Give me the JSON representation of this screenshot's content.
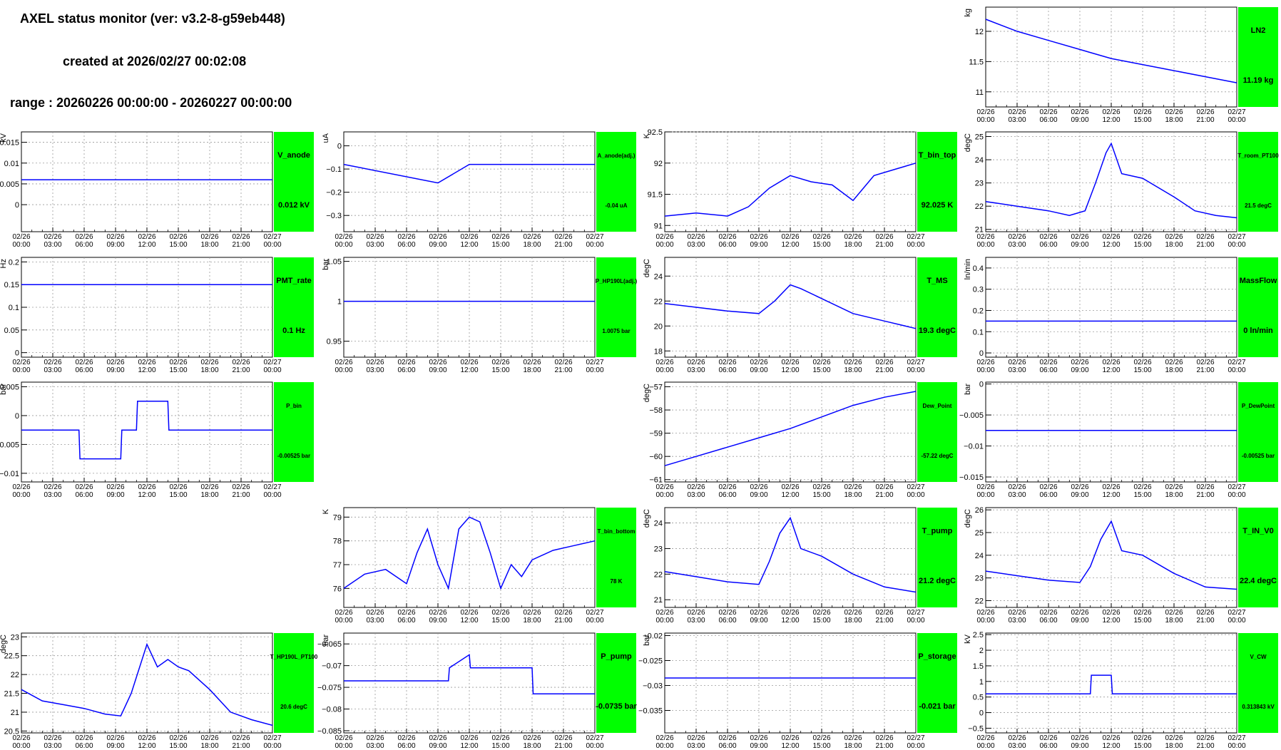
{
  "header": {
    "title": "AXEL status monitor (ver: v3.2-8-g59eb448)",
    "created": "created at 2026/02/27 00:02:08",
    "range": "range : 20260226 00:00:00 - 20260227 00:00:00"
  },
  "colors": {
    "trace": "#0000ff",
    "status_box": "#00ff00",
    "grid": "#9a9a9a"
  },
  "x_axis": {
    "ticks_top": [
      "02/26",
      "02/26",
      "02/26",
      "02/26",
      "02/26",
      "02/26",
      "02/26",
      "02/26",
      "02/27"
    ],
    "ticks_bottom": [
      "00:00",
      "03:00",
      "06:00",
      "09:00",
      "12:00",
      "15:00",
      "18:00",
      "21:00",
      "00:00"
    ]
  },
  "chart_data": [
    {
      "id": "LN2",
      "type": "line",
      "col": 3,
      "row": 0,
      "ylabel": "kg",
      "ylim": [
        10.75,
        12.4
      ],
      "yticks": [
        "11",
        "11.5",
        "12"
      ],
      "ytick_vals": [
        11,
        11.5,
        12
      ],
      "status_label": "LN2",
      "status_value": "11.19 kg",
      "small": false,
      "series": [
        {
          "x": [
            0,
            3,
            6,
            9,
            12,
            15,
            18,
            21,
            24
          ],
          "y": [
            12.2,
            12.0,
            11.85,
            11.7,
            11.55,
            11.45,
            11.35,
            11.25,
            11.15
          ]
        }
      ]
    },
    {
      "id": "V_anode",
      "type": "line",
      "col": 0,
      "row": 1,
      "ylabel": "kV",
      "ylim": [
        -0.0065,
        0.0175
      ],
      "yticks": [
        "0",
        "0.005",
        "0.01",
        "0.015"
      ],
      "ytick_vals": [
        0,
        0.005,
        0.01,
        0.015
      ],
      "status_label": "V_anode",
      "status_value": "0.012 kV",
      "small": false,
      "series": [
        {
          "x": [
            0,
            12,
            24
          ],
          "y": [
            0.006,
            0.006,
            0.006
          ]
        }
      ]
    },
    {
      "id": "A_anode",
      "type": "line",
      "col": 1,
      "row": 1,
      "ylabel": "uA",
      "ylim": [
        -0.37,
        0.06
      ],
      "yticks": [
        "0",
        "−0.1",
        "−0.2",
        "−0.3"
      ],
      "ytick_vals": [
        0,
        -0.1,
        -0.2,
        -0.3
      ],
      "status_label": "A_anode(adj.)",
      "status_value": "-0.04 uA",
      "small": true,
      "series": [
        {
          "x": [
            0,
            9,
            12,
            24
          ],
          "y": [
            -0.08,
            -0.16,
            -0.08,
            -0.08
          ]
        }
      ]
    },
    {
      "id": "T_bin_top",
      "type": "line",
      "col": 2,
      "row": 1,
      "ylabel": "K",
      "ylim": [
        90.9,
        92.5
      ],
      "yticks": [
        "91",
        "91.5",
        "92",
        "92.5"
      ],
      "ytick_vals": [
        91,
        91.5,
        92,
        92.5
      ],
      "status_label": "T_bin_top",
      "status_value": "92.025 K",
      "small": false,
      "series": [
        {
          "x": [
            0,
            3,
            6,
            8,
            10,
            12,
            14,
            16,
            18,
            20,
            22,
            24
          ],
          "y": [
            91.15,
            91.2,
            91.15,
            91.3,
            91.6,
            91.8,
            91.7,
            91.65,
            91.4,
            91.8,
            91.9,
            92.0
          ]
        }
      ]
    },
    {
      "id": "T_room_PT100",
      "type": "line",
      "col": 3,
      "row": 1,
      "ylabel": "degC",
      "ylim": [
        20.9,
        25.2
      ],
      "yticks": [
        "21",
        "22",
        "23",
        "24",
        "25"
      ],
      "ytick_vals": [
        21,
        22,
        23,
        24,
        25
      ],
      "status_label": "T_room_PT100",
      "status_value": "21.5 degC",
      "small": true,
      "series": [
        {
          "x": [
            0,
            3,
            6,
            8,
            9.5,
            10.5,
            11.5,
            12,
            13,
            15,
            18,
            20,
            22,
            24
          ],
          "y": [
            22.2,
            22.0,
            21.8,
            21.6,
            21.8,
            23.0,
            24.3,
            24.7,
            23.4,
            23.2,
            22.4,
            21.8,
            21.6,
            21.5
          ]
        }
      ]
    },
    {
      "id": "PMT_rate",
      "type": "line",
      "col": 0,
      "row": 2,
      "ylabel": "Hz",
      "ylim": [
        -0.01,
        0.21
      ],
      "yticks": [
        "0",
        "0.05",
        "0.1",
        "0.15",
        "0.2"
      ],
      "ytick_vals": [
        0,
        0.05,
        0.1,
        0.15,
        0.2
      ],
      "status_label": "PMT_rate",
      "status_value": "0.1 Hz",
      "small": false,
      "series": [
        {
          "x": [
            0,
            24
          ],
          "y": [
            0.15,
            0.15
          ]
        }
      ]
    },
    {
      "id": "P_HP190L",
      "type": "line",
      "col": 1,
      "row": 2,
      "ylabel": "bar",
      "ylim": [
        0.93,
        1.055
      ],
      "yticks": [
        "0.95",
        "1",
        "1.05"
      ],
      "ytick_vals": [
        0.95,
        1,
        1.05
      ],
      "status_label": "P_HP190L(adj.)",
      "status_value": "1.0075 bar",
      "small": true,
      "series": [
        {
          "x": [
            0,
            24
          ],
          "y": [
            1.0,
            1.0
          ]
        }
      ]
    },
    {
      "id": "T_MS",
      "type": "line",
      "col": 2,
      "row": 2,
      "ylabel": "degC",
      "ylim": [
        17.5,
        25.5
      ],
      "yticks": [
        "18",
        "20",
        "22",
        "24"
      ],
      "ytick_vals": [
        18,
        20,
        22,
        24
      ],
      "status_label": "T_MS",
      "status_value": "19.3 degC",
      "small": false,
      "series": [
        {
          "x": [
            0,
            3,
            6,
            9,
            10.5,
            12,
            13,
            15,
            18,
            21,
            24
          ],
          "y": [
            21.8,
            21.5,
            21.2,
            21.0,
            22.0,
            23.3,
            23.0,
            22.2,
            21.0,
            20.4,
            19.8
          ]
        }
      ]
    },
    {
      "id": "MassFlow",
      "type": "line",
      "col": 3,
      "row": 2,
      "ylabel": "ln/min",
      "ylim": [
        -0.02,
        0.45
      ],
      "yticks": [
        "0",
        "0.1",
        "0.2",
        "0.3",
        "0.4"
      ],
      "ytick_vals": [
        0,
        0.1,
        0.2,
        0.3,
        0.4
      ],
      "status_label": "MassFlow",
      "status_value": "0 ln/min",
      "small": false,
      "series": [
        {
          "x": [
            0,
            24
          ],
          "y": [
            0.15,
            0.15
          ]
        }
      ]
    },
    {
      "id": "P_bin",
      "type": "line",
      "col": 0,
      "row": 3,
      "ylabel": "bar",
      "ylim": [
        -0.0115,
        0.0058
      ],
      "yticks": [
        "−0.01",
        "−0.005",
        "0",
        "0.005"
      ],
      "ytick_vals": [
        -0.01,
        -0.005,
        0,
        0.005
      ],
      "status_label": "P_bin",
      "status_value": "-0.00525 bar",
      "small": true,
      "series": [
        {
          "x": [
            0,
            5.5,
            5.6,
            9.5,
            9.6,
            11,
            11.1,
            14,
            14.1,
            24
          ],
          "y": [
            -0.0025,
            -0.0025,
            -0.0075,
            -0.0075,
            -0.0025,
            -0.0025,
            0.0025,
            0.0025,
            -0.0025,
            -0.0025
          ]
        }
      ]
    },
    {
      "id": "Dew_Point",
      "type": "line",
      "col": 2,
      "row": 3,
      "ylabel": "degC",
      "ylim": [
        -61.1,
        -56.8
      ],
      "yticks": [
        "−61",
        "−60",
        "−59",
        "−58",
        "−57"
      ],
      "ytick_vals": [
        -61,
        -60,
        -59,
        -58,
        -57
      ],
      "status_label": "Dew_Point",
      "status_value": "-57.22 degC",
      "small": true,
      "series": [
        {
          "x": [
            0,
            3,
            6,
            9,
            12,
            15,
            18,
            21,
            24
          ],
          "y": [
            -60.4,
            -60.0,
            -59.6,
            -59.2,
            -58.8,
            -58.3,
            -57.8,
            -57.45,
            -57.2
          ]
        }
      ]
    },
    {
      "id": "P_DewPoint",
      "type": "line",
      "col": 3,
      "row": 3,
      "ylabel": "bar",
      "ylim": [
        -0.0158,
        0.0003
      ],
      "yticks": [
        "−0.015",
        "−0.01",
        "−0.005",
        "0"
      ],
      "ytick_vals": [
        -0.015,
        -0.01,
        -0.005,
        0
      ],
      "status_label": "P_DewPoint",
      "status_value": "-0.00525 bar",
      "small": true,
      "series": [
        {
          "x": [
            0,
            24
          ],
          "y": [
            -0.0075,
            -0.0075
          ]
        }
      ]
    },
    {
      "id": "T_bin_bottom",
      "type": "line",
      "col": 1,
      "row": 4,
      "ylabel": "K",
      "ylim": [
        75.2,
        79.4
      ],
      "yticks": [
        "76",
        "77",
        "78",
        "79"
      ],
      "ytick_vals": [
        76,
        77,
        78,
        79
      ],
      "status_label": "T_bin_bottom",
      "status_value": "78 K",
      "small": true,
      "series": [
        {
          "x": [
            0,
            2,
            4,
            6,
            7,
            8,
            9,
            10,
            11,
            12,
            13,
            14,
            15,
            16,
            17,
            18,
            20,
            22,
            24
          ],
          "y": [
            76.0,
            76.6,
            76.8,
            76.2,
            77.5,
            78.5,
            77.0,
            76.0,
            78.5,
            79.0,
            78.8,
            77.5,
            76.0,
            77.0,
            76.5,
            77.2,
            77.6,
            77.8,
            78.0
          ]
        }
      ]
    },
    {
      "id": "T_pump",
      "type": "line",
      "col": 2,
      "row": 4,
      "ylabel": "degC",
      "ylim": [
        20.7,
        24.6
      ],
      "yticks": [
        "21",
        "22",
        "23",
        "24"
      ],
      "ytick_vals": [
        21,
        22,
        23,
        24
      ],
      "status_label": "T_pump",
      "status_value": "21.2 degC",
      "small": false,
      "series": [
        {
          "x": [
            0,
            3,
            6,
            9,
            10,
            11,
            12,
            13,
            15,
            18,
            21,
            24
          ],
          "y": [
            22.1,
            21.9,
            21.7,
            21.6,
            22.5,
            23.6,
            24.2,
            23.0,
            22.7,
            22.0,
            21.5,
            21.3
          ]
        }
      ]
    },
    {
      "id": "T_IN_V0",
      "type": "line",
      "col": 3,
      "row": 4,
      "ylabel": "degC",
      "ylim": [
        21.7,
        26.1
      ],
      "yticks": [
        "22",
        "23",
        "24",
        "25",
        "26"
      ],
      "ytick_vals": [
        22,
        23,
        24,
        25,
        26
      ],
      "status_label": "T_IN_V0",
      "status_value": "22.4 degC",
      "small": false,
      "series": [
        {
          "x": [
            0,
            3,
            6,
            9,
            10,
            11,
            12,
            13,
            15,
            18,
            21,
            24
          ],
          "y": [
            23.3,
            23.1,
            22.9,
            22.8,
            23.5,
            24.7,
            25.5,
            24.2,
            24.0,
            23.2,
            22.6,
            22.5
          ]
        }
      ]
    },
    {
      "id": "T_HP190L_PT100",
      "type": "line",
      "col": 0,
      "row": 5,
      "ylabel": "degC",
      "ylim": [
        20.45,
        23.1
      ],
      "yticks": [
        "20.5",
        "21",
        "21.5",
        "22",
        "22.5",
        "23"
      ],
      "ytick_vals": [
        20.5,
        21,
        21.5,
        22,
        22.5,
        23
      ],
      "status_label": "T_HP190L_PT100",
      "status_value": "20.6 degC",
      "small": true,
      "series": [
        {
          "x": [
            0,
            2,
            4,
            6,
            8,
            9.5,
            10.5,
            12,
            13,
            14,
            15,
            16,
            18,
            20,
            22,
            24
          ],
          "y": [
            21.6,
            21.3,
            21.2,
            21.1,
            20.95,
            20.9,
            21.5,
            22.8,
            22.2,
            22.4,
            22.2,
            22.1,
            21.6,
            21.0,
            20.8,
            20.65
          ]
        }
      ]
    },
    {
      "id": "P_pump",
      "type": "line",
      "col": 1,
      "row": 5,
      "ylabel": "bar",
      "ylim": [
        -0.0855,
        -0.0625
      ],
      "yticks": [
        "−0.085",
        "−0.08",
        "−0.075",
        "−0.07",
        "−0.065"
      ],
      "ytick_vals": [
        -0.085,
        -0.08,
        -0.075,
        -0.07,
        -0.065
      ],
      "status_label": "P_pump",
      "status_value": "-0.0735 bar",
      "small": false,
      "series": [
        {
          "x": [
            0,
            10,
            10.1,
            12,
            12.1,
            18,
            18.1,
            24
          ],
          "y": [
            -0.0735,
            -0.0735,
            -0.0705,
            -0.0675,
            -0.0705,
            -0.0705,
            -0.0765,
            -0.0765
          ]
        }
      ]
    },
    {
      "id": "P_storage",
      "type": "line",
      "col": 2,
      "row": 5,
      "ylabel": "bar",
      "ylim": [
        -0.0395,
        -0.0195
      ],
      "yticks": [
        "−0.035",
        "−0.03",
        "−0.025",
        "−0.02"
      ],
      "ytick_vals": [
        -0.035,
        -0.03,
        -0.025,
        -0.02
      ],
      "status_label": "P_storage",
      "status_value": "-0.021 bar",
      "small": false,
      "series": [
        {
          "x": [
            0,
            24
          ],
          "y": [
            -0.0285,
            -0.0285
          ]
        }
      ]
    },
    {
      "id": "V_CW",
      "type": "line",
      "col": 3,
      "row": 5,
      "ylabel": "kV",
      "ylim": [
        -0.65,
        2.55
      ],
      "yticks": [
        "−0.5",
        "0",
        "0.5",
        "1",
        "1.5",
        "2",
        "2.5"
      ],
      "ytick_vals": [
        -0.5,
        0,
        0.5,
        1,
        1.5,
        2,
        2.5
      ],
      "status_label": "V_CW",
      "status_value": "0.313843 kV",
      "small": true,
      "series": [
        {
          "x": [
            0,
            10,
            10.1,
            12,
            12.1,
            24
          ],
          "y": [
            0.6,
            0.6,
            1.2,
            1.2,
            0.6,
            0.6
          ]
        }
      ]
    }
  ]
}
